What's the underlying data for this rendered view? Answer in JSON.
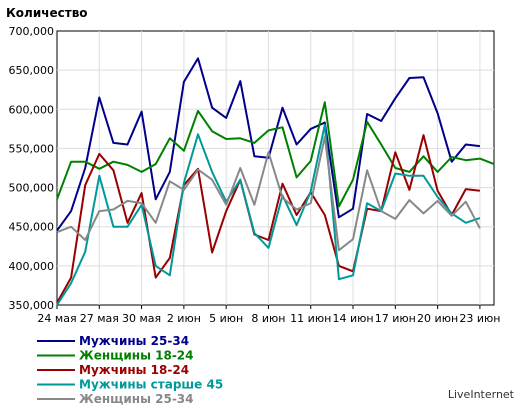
{
  "chart_data": {
    "type": "line",
    "title": "Количество",
    "xlabel": "",
    "ylabel": "",
    "ylim": [
      350000,
      700000
    ],
    "yticks": [
      350000,
      400000,
      450000,
      500000,
      550000,
      600000,
      650000,
      700000
    ],
    "ytick_labels": [
      "350,000",
      "400,000",
      "450,000",
      "500,000",
      "550,000",
      "600,000",
      "650,000",
      "700,000"
    ],
    "x": [
      "24 мая",
      "25 мая",
      "26 мая",
      "27 мая",
      "28 мая",
      "29 мая",
      "30 мая",
      "31 мая",
      "1 июн",
      "2 июн",
      "3 июн",
      "4 июн",
      "5 июн",
      "6 июн",
      "7 июн",
      "8 июн",
      "9 июн",
      "10 июн",
      "11 июн",
      "12 июн",
      "13 июн",
      "14 июн",
      "15 июн",
      "16 июн",
      "17 июн",
      "18 июн",
      "19 июн",
      "20 июн",
      "21 июн",
      "22 июн",
      "23 июн",
      "24 июн"
    ],
    "xtick_labels": [
      "24 мая",
      "27 мая",
      "30 мая",
      "2 июн",
      "5 июн",
      "8 июн",
      "11 июн",
      "14 июн",
      "17 июн",
      "20 июн",
      "23 июн"
    ],
    "grid": true,
    "legend": "bottom",
    "series": [
      {
        "name": "Мужчины 25-34",
        "color": "#00008b",
        "values": [
          445000,
          470000,
          525000,
          615000,
          557000,
          555000,
          597000,
          485000,
          520000,
          635000,
          665000,
          602000,
          589000,
          636000,
          540000,
          538000,
          602000,
          555000,
          575000,
          583000,
          462000,
          473000,
          594000,
          585000,
          614000,
          640000,
          641000,
          595000,
          533000,
          555000,
          553000,
          null
        ]
      },
      {
        "name": "Женщины 18-24",
        "color": "#008000",
        "values": [
          485000,
          533000,
          533000,
          524000,
          533000,
          529000,
          520000,
          530000,
          563000,
          547000,
          598000,
          572000,
          562000,
          563000,
          557000,
          573000,
          577000,
          513000,
          534000,
          609000,
          476000,
          510000,
          584000,
          555000,
          525000,
          520000,
          540000,
          520000,
          539000,
          535000,
          537000,
          530000
        ]
      },
      {
        "name": "Мужчины 18-24",
        "color": "#990000",
        "values": [
          353000,
          385000,
          503000,
          543000,
          522000,
          455000,
          493000,
          385000,
          410000,
          503000,
          524000,
          417000,
          470000,
          510000,
          440000,
          433000,
          505000,
          465000,
          494000,
          465000,
          400000,
          393000,
          473000,
          470000,
          545000,
          497000,
          567000,
          496000,
          465000,
          498000,
          496000,
          null
        ]
      },
      {
        "name": "Мужчины старше 45",
        "color": "#009999",
        "values": [
          350000,
          378000,
          418000,
          515000,
          450000,
          450000,
          478000,
          400000,
          388000,
          506000,
          568000,
          520000,
          482000,
          510000,
          442000,
          423000,
          490000,
          452000,
          495000,
          580000,
          383000,
          388000,
          480000,
          470000,
          518000,
          515000,
          515000,
          488000,
          467000,
          455000,
          461000,
          null
        ]
      },
      {
        "name": "Женщины 25-34",
        "color": "#888888",
        "values": [
          443000,
          450000,
          433000,
          470000,
          472000,
          483000,
          480000,
          455000,
          508000,
          497000,
          523000,
          510000,
          478000,
          525000,
          478000,
          545000,
          487000,
          472000,
          480000,
          565000,
          420000,
          434000,
          522000,
          470000,
          460000,
          484000,
          467000,
          483000,
          464000,
          482000,
          448000,
          null
        ]
      }
    ]
  },
  "watermark": "LiveInternet"
}
